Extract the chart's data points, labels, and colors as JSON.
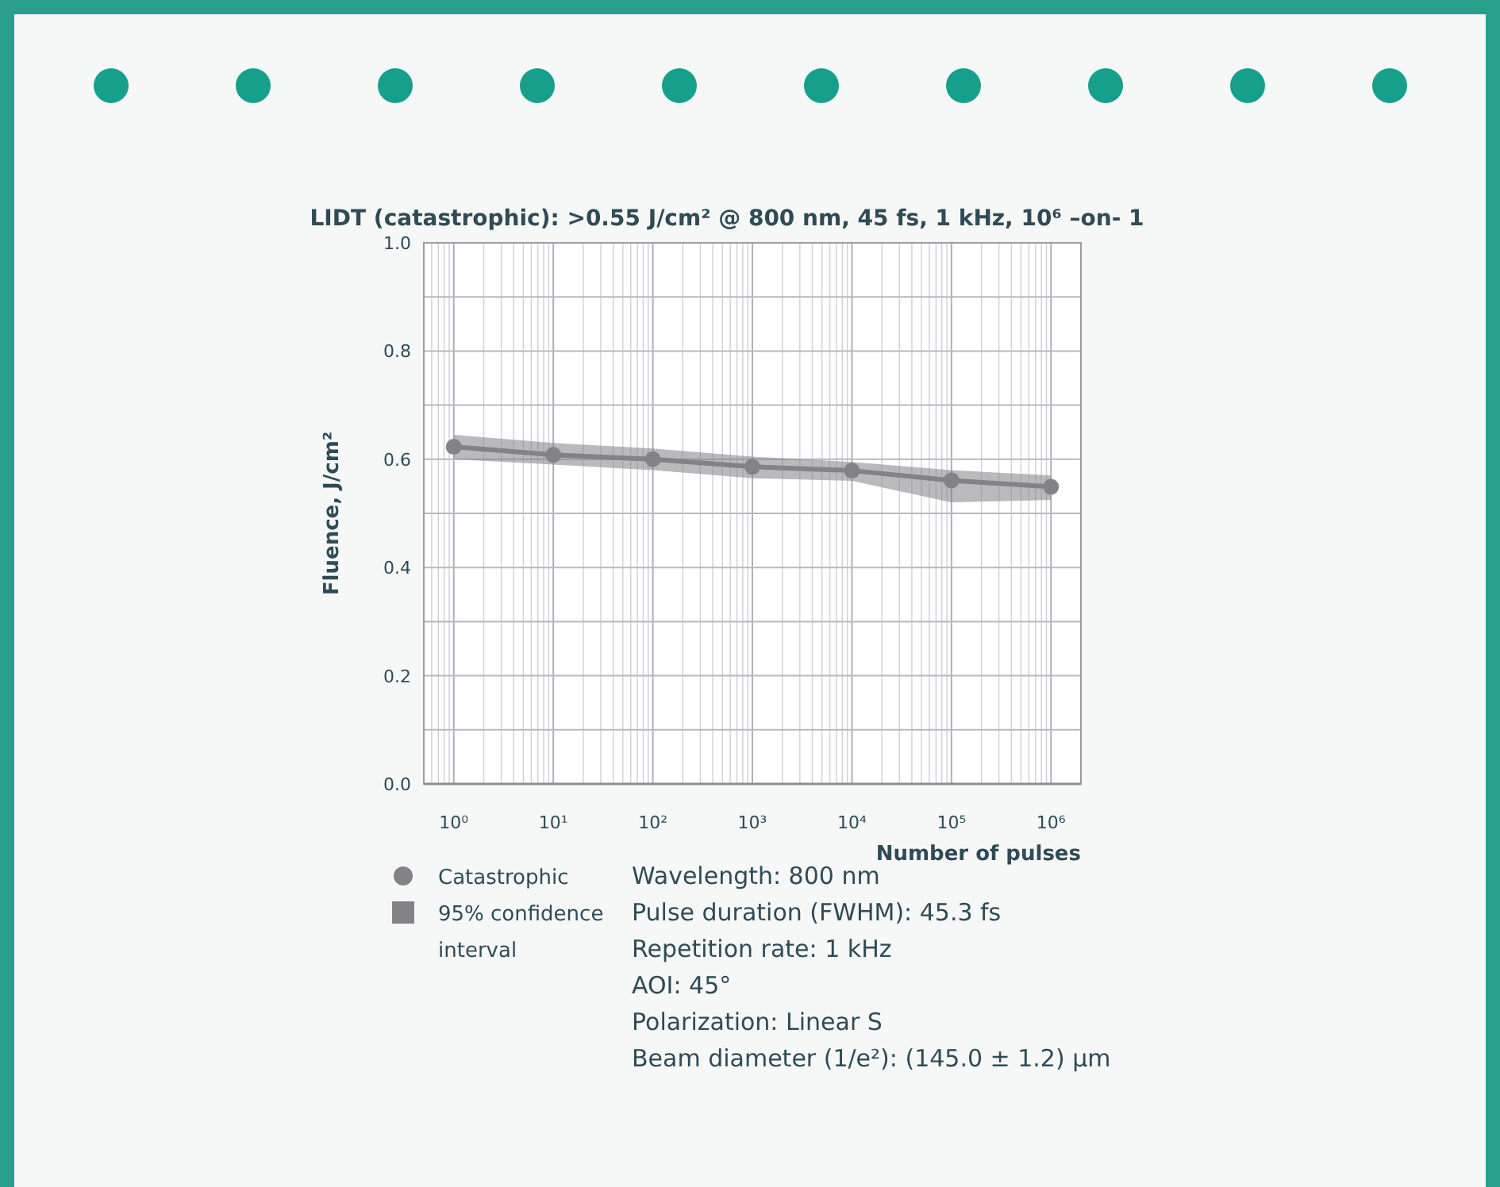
{
  "chart_data": {
    "type": "line",
    "title": "LIDT (catastrophic): >0.55 J/cm² @ 800 nm, 45 fs, 1 kHz, 10⁶ –on- 1",
    "xlabel": "Number of pulses",
    "ylabel": "Fluence, J/cm²",
    "x": [
      1,
      10,
      100,
      1000,
      10000,
      100000,
      1000000
    ],
    "series": [
      {
        "name": "Catastrophic",
        "color": "#828287",
        "values": [
          0.623,
          0.608,
          0.6,
          0.586,
          0.579,
          0.561,
          0.549
        ],
        "lower": [
          0.6,
          0.59,
          0.58,
          0.565,
          0.56,
          0.52,
          0.525
        ],
        "upper": [
          0.645,
          0.63,
          0.62,
          0.605,
          0.595,
          0.58,
          0.57
        ]
      }
    ],
    "log": "x",
    "xlim": [
      0.5,
      2000000
    ],
    "ylim": [
      0,
      1
    ],
    "xticks": [
      {
        "value": 1,
        "label": "10⁰"
      },
      {
        "value": 10,
        "label": "10¹"
      },
      {
        "value": 100,
        "label": "10²"
      },
      {
        "value": 1000,
        "label": "10³"
      },
      {
        "value": 10000,
        "label": "10⁴"
      },
      {
        "value": 100000,
        "label": "10⁵"
      },
      {
        "value": 1000000,
        "label": "10⁶"
      }
    ],
    "yticks": [
      {
        "value": 0,
        "label": "0.0"
      },
      {
        "value": 0.1,
        "label": null
      },
      {
        "value": 0.2,
        "label": "0.2"
      },
      {
        "value": 0.3,
        "label": null
      },
      {
        "value": 0.4,
        "label": "0.4"
      },
      {
        "value": 0.5,
        "label": null
      },
      {
        "value": 0.6,
        "label": "0.6"
      },
      {
        "value": 0.7,
        "label": null
      },
      {
        "value": 0.8,
        "label": "0.8"
      },
      {
        "value": 0.9,
        "label": null
      },
      {
        "value": 1,
        "label": "1.0"
      }
    ],
    "grid": true,
    "marker": "circle",
    "line_style": "solid",
    "legend": "bottom left",
    "annotations": [
      "95% confidence interval",
      "Wavelength: 800 nm",
      "Pulse duration (FWHM): 45.3 fs",
      "Repetition rate: 1 kHz",
      "AOI: 45°",
      "Polarization: Linear S",
      "Beam diameter (1/e²): (145.0 ± 1.2) µm"
    ]
  }
}
